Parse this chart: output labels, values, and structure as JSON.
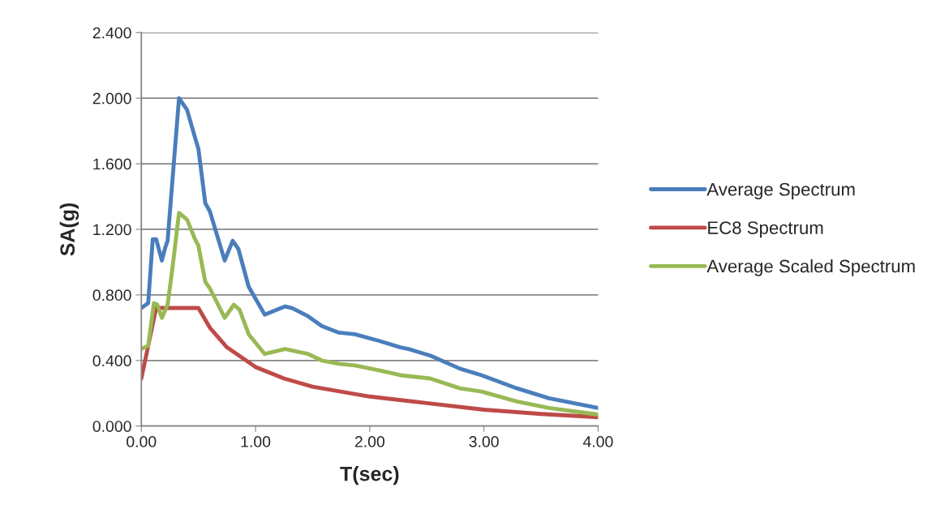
{
  "chart_data": {
    "type": "line",
    "xlabel": "T(sec)",
    "ylabel": "SA(g)",
    "xlim": [
      0,
      4
    ],
    "ylim": [
      0,
      2.4
    ],
    "xticks": [
      {
        "value": 0,
        "label": "0.00"
      },
      {
        "value": 1,
        "label": "1.00"
      },
      {
        "value": 2,
        "label": "2.00"
      },
      {
        "value": 3,
        "label": "3.00"
      },
      {
        "value": 4,
        "label": "4.00"
      }
    ],
    "yticks": [
      {
        "value": 0,
        "label": "0.000"
      },
      {
        "value": 0.4,
        "label": "0.400"
      },
      {
        "value": 0.8,
        "label": "0.800"
      },
      {
        "value": 1.2,
        "label": "1.200"
      },
      {
        "value": 1.6,
        "label": "1.600"
      },
      {
        "value": 2.0,
        "label": "2.000"
      },
      {
        "value": 2.4,
        "label": "2.400"
      }
    ],
    "grid": "y",
    "legend": "right",
    "marker": "none",
    "line_style": "solid",
    "series": [
      {
        "name": "Average Spectrum",
        "color": "#4a7ebb",
        "x": [
          0,
          0.06,
          0.1,
          0.13,
          0.18,
          0.21,
          0.23,
          0.33,
          0.4,
          0.47,
          0.5,
          0.56,
          0.6,
          0.73,
          0.8,
          0.85,
          0.94,
          1.08,
          1.26,
          1.32,
          1.46,
          1.58,
          1.73,
          1.87,
          2.08,
          2.27,
          2.34,
          2.53,
          2.79,
          2.98,
          3.29,
          3.57,
          4.0
        ],
        "values": [
          0.72,
          0.75,
          1.14,
          1.14,
          1.01,
          1.09,
          1.13,
          2.0,
          1.93,
          1.76,
          1.69,
          1.36,
          1.31,
          1.01,
          1.13,
          1.08,
          0.85,
          0.68,
          0.73,
          0.72,
          0.67,
          0.61,
          0.57,
          0.56,
          0.52,
          0.48,
          0.47,
          0.43,
          0.35,
          0.31,
          0.23,
          0.17,
          0.11
        ]
      },
      {
        "name": "EC8 Spectrum",
        "color": "#be4b48",
        "x": [
          0,
          0.13,
          0.5,
          0.6,
          0.75,
          1.0,
          1.25,
          1.5,
          2.0,
          2.5,
          3.0,
          3.5,
          4.0
        ],
        "values": [
          0.29,
          0.72,
          0.72,
          0.6,
          0.48,
          0.36,
          0.29,
          0.24,
          0.18,
          0.14,
          0.1,
          0.074,
          0.054
        ]
      },
      {
        "name": "Average Scaled Spectrum",
        "color": "#98b954",
        "x": [
          0,
          0.06,
          0.11,
          0.14,
          0.18,
          0.23,
          0.27,
          0.33,
          0.4,
          0.47,
          0.5,
          0.56,
          0.6,
          0.73,
          0.81,
          0.86,
          0.94,
          1.08,
          1.26,
          1.39,
          1.46,
          1.58,
          1.73,
          1.87,
          2.08,
          2.27,
          2.53,
          2.79,
          2.98,
          3.29,
          3.57,
          4.0
        ],
        "values": [
          0.47,
          0.49,
          0.75,
          0.74,
          0.66,
          0.74,
          0.95,
          1.3,
          1.26,
          1.14,
          1.1,
          0.88,
          0.84,
          0.66,
          0.74,
          0.71,
          0.56,
          0.44,
          0.47,
          0.45,
          0.44,
          0.4,
          0.38,
          0.37,
          0.34,
          0.31,
          0.29,
          0.23,
          0.21,
          0.15,
          0.11,
          0.07
        ]
      }
    ]
  }
}
